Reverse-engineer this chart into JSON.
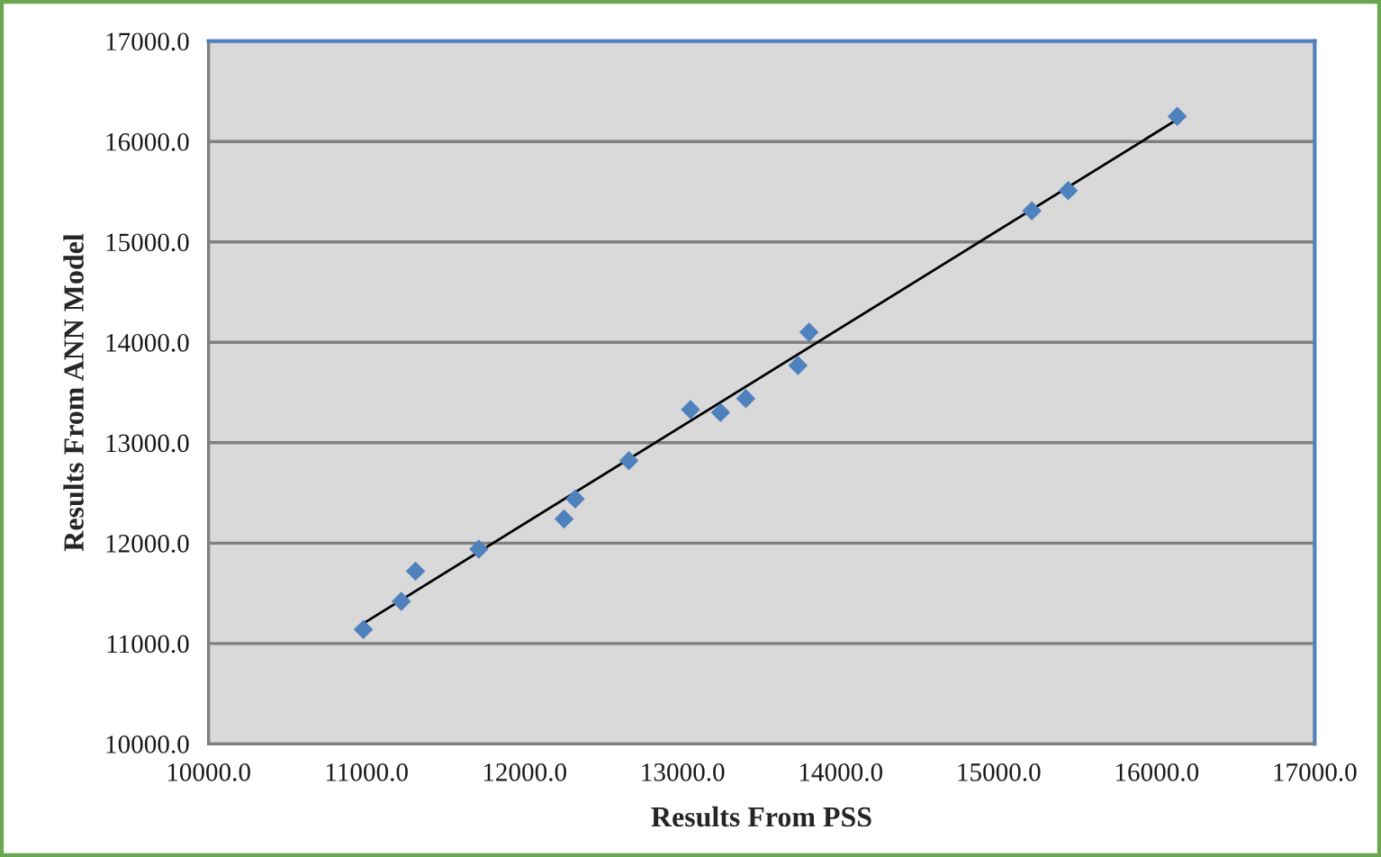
{
  "chart_data": {
    "type": "scatter",
    "xlabel": "Results From PSS",
    "ylabel": "Results From ANN Model",
    "xlim": [
      10000,
      17000
    ],
    "ylim": [
      10000,
      17000
    ],
    "xticks": [
      {
        "value": 10000,
        "label": "10000.0"
      },
      {
        "value": 11000,
        "label": "11000.0"
      },
      {
        "value": 12000,
        "label": "12000.0"
      },
      {
        "value": 13000,
        "label": "13000.0"
      },
      {
        "value": 14000,
        "label": "14000.0"
      },
      {
        "value": 15000,
        "label": "15000.0"
      },
      {
        "value": 16000,
        "label": "16000.0"
      },
      {
        "value": 17000,
        "label": "17000.0"
      }
    ],
    "yticks": [
      {
        "value": 10000,
        "label": "10000.0"
      },
      {
        "value": 11000,
        "label": "11000.0"
      },
      {
        "value": 12000,
        "label": "12000.0"
      },
      {
        "value": 13000,
        "label": "13000.0"
      },
      {
        "value": 14000,
        "label": "14000.0"
      },
      {
        "value": 15000,
        "label": "15000.0"
      },
      {
        "value": 16000,
        "label": "16000.0"
      },
      {
        "value": 17000,
        "label": "17000.0"
      }
    ],
    "grid": "y",
    "series": [
      {
        "color": "#4f81bd",
        "marker": "diamond",
        "x": [
          10980,
          11220,
          11310,
          11710,
          12250,
          12320,
          12660,
          13050,
          13240,
          13400,
          13730,
          13800,
          15210,
          15440,
          16130
        ],
        "values": [
          11140,
          11420,
          11720,
          11940,
          12240,
          12440,
          12820,
          13330,
          13300,
          13440,
          13770,
          14100,
          15310,
          15510,
          16250
        ]
      },
      {
        "type": "line",
        "color": "#000000",
        "x": [
          10970,
          16130
        ],
        "values": [
          11190,
          16220
        ]
      }
    ]
  }
}
